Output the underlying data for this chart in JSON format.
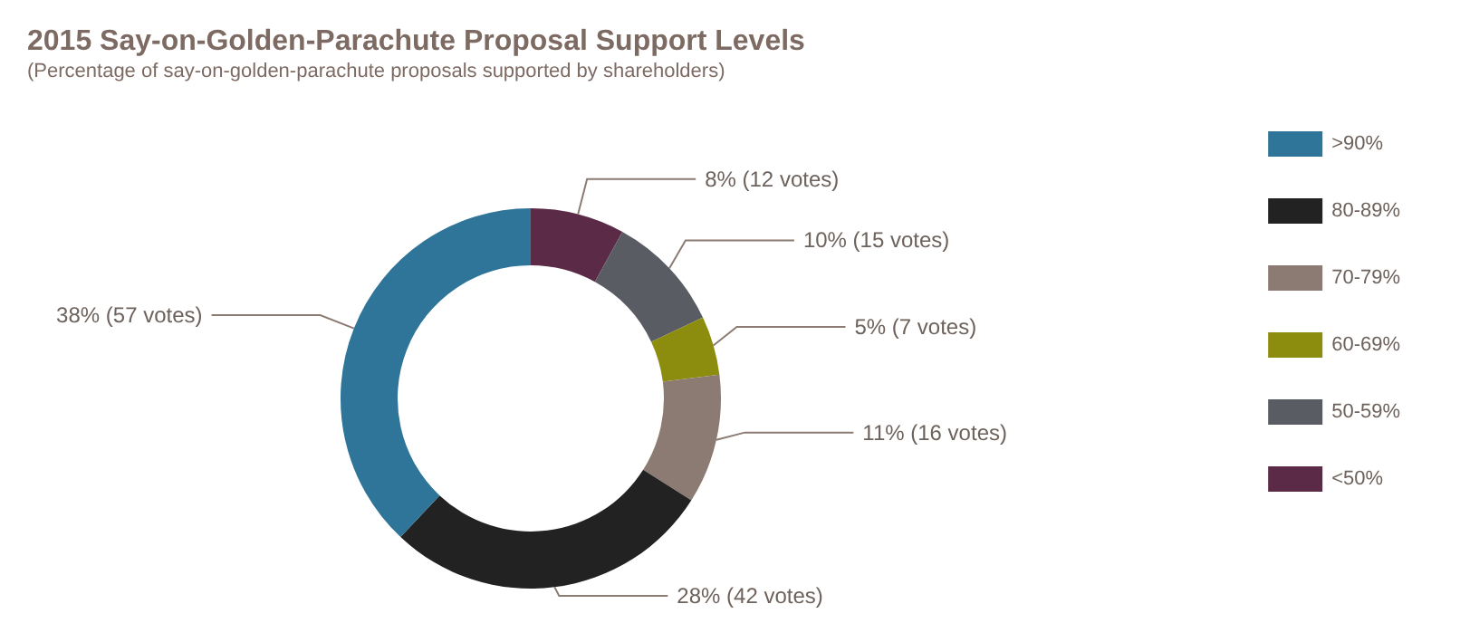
{
  "chart_data": {
    "type": "donut",
    "title": "2015 Say-on-Golden-Parachute Proposal Support Levels",
    "subtitle": "(Percentage of say-on-golden-parachute proposals supported by shareholders)",
    "categories": [
      "<50%",
      "50-59%",
      "60-69%",
      "70-79%",
      "80-89%",
      ">90%"
    ],
    "values": [
      8,
      10,
      5,
      11,
      28,
      38
    ],
    "value_labels": [
      "8% (12 votes)",
      "10% (15 votes)",
      "5% (7 votes)",
      "11% (16 votes)",
      "28% (42 votes)",
      "38% (57 votes)"
    ],
    "colors": [
      "#5b2a47",
      "#5a5c64",
      "#8c8c0e",
      "#8c7b73",
      "#222222",
      "#2f7499"
    ],
    "legend": "right"
  }
}
